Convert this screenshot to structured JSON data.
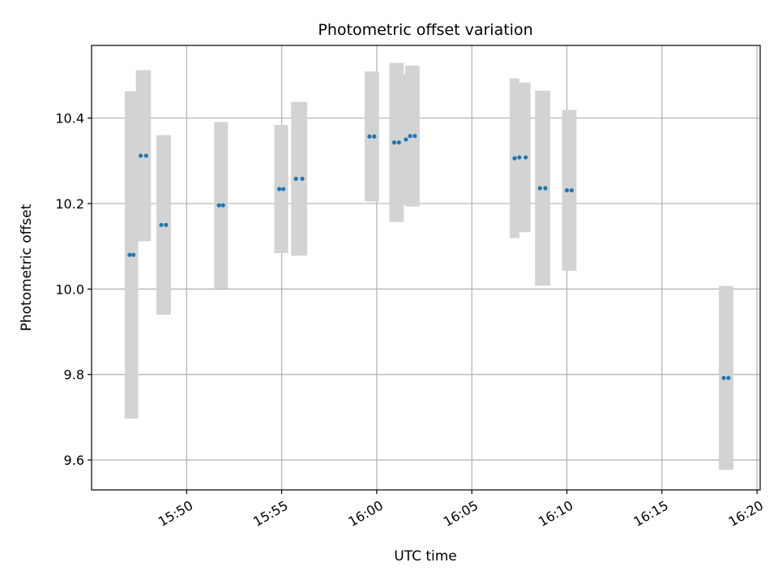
{
  "chart_data": {
    "type": "scatter",
    "title": "Photometric offset variation",
    "xlabel": "UTC time",
    "ylabel": "Photometric offset",
    "x_ticks": [
      "15:50",
      "15:55",
      "16:00",
      "16:05",
      "16:10",
      "16:15",
      "16:20"
    ],
    "y_ticks": [
      "9.6",
      "9.8",
      "10.0",
      "10.2",
      "10.4"
    ],
    "y_tick_values": [
      9.6,
      9.8,
      10.0,
      10.2,
      10.4
    ],
    "xlim": [
      "15:45:00",
      "16:20:10"
    ],
    "ylim": [
      9.53,
      10.57
    ],
    "grid": true,
    "colors": {
      "points": "#1f77b4",
      "errorbars": "#d3d3d3",
      "grid": "#b0b0b0"
    },
    "series": [
      {
        "points": [
          {
            "t": "15:47:00",
            "y": 10.08,
            "err": 0.383
          },
          {
            "t": "15:47:12",
            "y": 10.08,
            "err": 0.383
          },
          {
            "t": "15:47:35",
            "y": 10.312,
            "err": 0.2
          },
          {
            "t": "15:47:52",
            "y": 10.312,
            "err": 0.2
          },
          {
            "t": "15:48:40",
            "y": 10.15,
            "err": 0.21
          },
          {
            "t": "15:48:55",
            "y": 10.15,
            "err": 0.21
          },
          {
            "t": "15:51:42",
            "y": 10.196,
            "err": 0.195
          },
          {
            "t": "15:51:55",
            "y": 10.196,
            "err": 0.195
          },
          {
            "t": "15:54:52",
            "y": 10.234,
            "err": 0.15
          },
          {
            "t": "15:55:05",
            "y": 10.234,
            "err": 0.15
          },
          {
            "t": "15:55:45",
            "y": 10.258,
            "err": 0.18
          },
          {
            "t": "15:56:05",
            "y": 10.258,
            "err": 0.18
          },
          {
            "t": "15:59:37",
            "y": 10.357,
            "err": 0.152
          },
          {
            "t": "15:59:52",
            "y": 10.357,
            "err": 0.152
          },
          {
            "t": "16:00:55",
            "y": 10.343,
            "err": 0.186
          },
          {
            "t": "16:01:10",
            "y": 10.343,
            "err": 0.186
          },
          {
            "t": "16:01:32",
            "y": 10.35,
            "err": 0.153
          },
          {
            "t": "16:01:45",
            "y": 10.358,
            "err": 0.165
          },
          {
            "t": "16:02:00",
            "y": 10.358,
            "err": 0.165
          },
          {
            "t": "16:07:15",
            "y": 10.306,
            "err": 0.187
          },
          {
            "t": "16:07:30",
            "y": 10.308,
            "err": 0.175
          },
          {
            "t": "16:07:50",
            "y": 10.308,
            "err": 0.175
          },
          {
            "t": "16:08:35",
            "y": 10.236,
            "err": 0.228
          },
          {
            "t": "16:08:52",
            "y": 10.236,
            "err": 0.228
          },
          {
            "t": "16:10:00",
            "y": 10.231,
            "err": 0.188
          },
          {
            "t": "16:10:15",
            "y": 10.231,
            "err": 0.188
          },
          {
            "t": "16:18:15",
            "y": 9.792,
            "err": 0.215
          },
          {
            "t": "16:18:30",
            "y": 9.792,
            "err": 0.215
          }
        ]
      }
    ]
  }
}
